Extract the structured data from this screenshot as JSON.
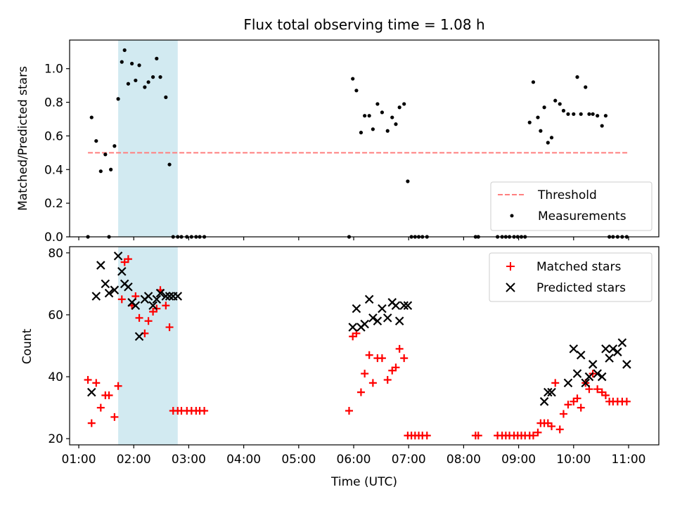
{
  "chart_data": [
    {
      "type": "scatter",
      "title": "Flux total observing time = 1.08 h",
      "ylabel": "Matched/Predicted stars",
      "xlabel": "",
      "xlim": [
        "00:50",
        "11:33"
      ],
      "ylim": [
        0,
        1.17
      ],
      "x_ticks": [
        "01:00",
        "02:00",
        "03:00",
        "04:00",
        "05:00",
        "06:00",
        "07:00",
        "08:00",
        "09:00",
        "10:00",
        "11:00"
      ],
      "y_ticks": [
        "0.0",
        "0.2",
        "0.4",
        "0.6",
        "0.8",
        "1.0"
      ],
      "shaded_span": [
        "01:43",
        "02:48"
      ],
      "shade_color": "#add8e6",
      "legend_position": "lower right",
      "threshold": {
        "name": "Threshold",
        "value": 0.5,
        "x_range": [
          "01:10",
          "11:00"
        ],
        "color": "#ff7f7f"
      },
      "series": [
        {
          "name": "Measurements",
          "color": "#000000",
          "x": [
            "01:10",
            "01:14",
            "01:19",
            "01:24",
            "01:29",
            "01:33",
            "01:35",
            "01:39",
            "01:43",
            "01:47",
            "01:50",
            "01:54",
            "01:58",
            "02:02",
            "02:06",
            "02:12",
            "02:16",
            "02:21",
            "02:25",
            "02:29",
            "02:35",
            "02:39",
            "02:43",
            "02:48",
            "02:52",
            "02:58",
            "03:03",
            "03:08",
            "03:12",
            "03:17",
            "05:55",
            "05:59",
            "06:03",
            "06:08",
            "06:12",
            "06:17",
            "06:21",
            "06:26",
            "06:31",
            "06:37",
            "06:42",
            "06:46",
            "06:50",
            "06:55",
            "06:59",
            "07:03",
            "07:07",
            "07:11",
            "07:15",
            "07:20",
            "08:13",
            "08:16",
            "08:37",
            "08:42",
            "08:46",
            "08:50",
            "08:55",
            "08:59",
            "09:03",
            "09:07",
            "09:12",
            "09:16",
            "09:21",
            "09:24",
            "09:28",
            "09:32",
            "09:36",
            "09:40",
            "09:45",
            "09:49",
            "09:54",
            "10:00",
            "10:04",
            "10:08",
            "10:13",
            "10:17",
            "10:21",
            "10:26",
            "10:31",
            "10:35",
            "10:39",
            "10:43",
            "10:48",
            "10:53",
            "10:58"
          ],
          "y": [
            0.0,
            0.71,
            0.57,
            0.39,
            0.49,
            0.0,
            0.4,
            0.54,
            0.82,
            1.04,
            1.11,
            0.91,
            1.03,
            0.93,
            1.02,
            0.89,
            0.92,
            0.95,
            1.06,
            0.95,
            0.83,
            0.43,
            0.0,
            0.0,
            0.0,
            0.0,
            0.0,
            0.0,
            0.0,
            0.0,
            0.0,
            0.94,
            0.87,
            0.62,
            0.72,
            0.72,
            0.64,
            0.79,
            0.74,
            0.63,
            0.71,
            0.67,
            0.77,
            0.79,
            0.33,
            0.0,
            0.0,
            0.0,
            0.0,
            0.0,
            0.0,
            0.0,
            0.0,
            0.0,
            0.0,
            0.0,
            0.0,
            0.0,
            0.0,
            0.0,
            0.68,
            0.92,
            0.71,
            0.63,
            0.77,
            0.56,
            0.59,
            0.81,
            0.79,
            0.75,
            0.73,
            0.73,
            0.95,
            0.73,
            0.89,
            0.73,
            0.73,
            0.72,
            0.66,
            0.72,
            0.0,
            0.0,
            0.0,
            0.0,
            0.0
          ]
        }
      ]
    },
    {
      "type": "scatter",
      "title": "",
      "xlabel": "Time (UTC)",
      "ylabel": "Count",
      "xlim": [
        "00:50",
        "11:33"
      ],
      "ylim": [
        18,
        82
      ],
      "x_ticks": [
        "01:00",
        "02:00",
        "03:00",
        "04:00",
        "05:00",
        "06:00",
        "07:00",
        "08:00",
        "09:00",
        "10:00",
        "11:00"
      ],
      "y_ticks": [
        "20",
        "40",
        "60",
        "80"
      ],
      "shaded_span": [
        "01:43",
        "02:48"
      ],
      "shade_color": "#add8e6",
      "legend_position": "upper right",
      "series": [
        {
          "name": "Matched stars",
          "color": "#ff0000",
          "marker": "+",
          "x": [
            "01:10",
            "01:14",
            "01:19",
            "01:24",
            "01:29",
            "01:33",
            "01:39",
            "01:43",
            "01:47",
            "01:50",
            "01:54",
            "01:58",
            "02:02",
            "02:06",
            "02:12",
            "02:16",
            "02:21",
            "02:25",
            "02:29",
            "02:35",
            "02:39",
            "02:43",
            "02:48",
            "02:52",
            "02:58",
            "03:03",
            "03:08",
            "03:12",
            "03:17",
            "05:55",
            "05:59",
            "06:03",
            "06:08",
            "06:12",
            "06:17",
            "06:21",
            "06:26",
            "06:31",
            "06:37",
            "06:42",
            "06:46",
            "06:50",
            "06:55",
            "06:59",
            "07:03",
            "07:07",
            "07:11",
            "07:15",
            "07:20",
            "08:13",
            "08:16",
            "08:37",
            "08:42",
            "08:46",
            "08:50",
            "08:55",
            "08:59",
            "09:03",
            "09:07",
            "09:12",
            "09:16",
            "09:21",
            "09:24",
            "09:28",
            "09:32",
            "09:36",
            "09:40",
            "09:45",
            "09:49",
            "09:54",
            "10:00",
            "10:04",
            "10:08",
            "10:13",
            "10:17",
            "10:21",
            "10:26",
            "10:31",
            "10:35",
            "10:39",
            "10:43",
            "10:48",
            "10:53",
            "10:58"
          ],
          "y": [
            39,
            25,
            38,
            30,
            34,
            34,
            27,
            37,
            65,
            77,
            78,
            63,
            66,
            59,
            54,
            58,
            61,
            62,
            68,
            63,
            56,
            29,
            29,
            29,
            29,
            29,
            29,
            29,
            29,
            29,
            53,
            54,
            35,
            41,
            47,
            38,
            46,
            46,
            39,
            42,
            43,
            49,
            46,
            21,
            21,
            21,
            21,
            21,
            21,
            21,
            21,
            21,
            21,
            21,
            21,
            21,
            21,
            21,
            21,
            21,
            21,
            22,
            25,
            25,
            25,
            24,
            38,
            23,
            28,
            31,
            32,
            33,
            30,
            38,
            36,
            41,
            36,
            35,
            34,
            32,
            32,
            32,
            32,
            32
          ]
        },
        {
          "name": "Predicted stars",
          "color": "#000000",
          "marker": "x",
          "x": [
            "01:14",
            "01:19",
            "01:24",
            "01:29",
            "01:33",
            "01:39",
            "01:43",
            "01:47",
            "01:50",
            "01:54",
            "01:58",
            "02:02",
            "02:06",
            "02:12",
            "02:16",
            "02:21",
            "02:25",
            "02:29",
            "02:35",
            "02:39",
            "02:43",
            "02:48",
            "05:59",
            "06:03",
            "06:08",
            "06:12",
            "06:17",
            "06:21",
            "06:26",
            "06:31",
            "06:37",
            "06:42",
            "06:46",
            "06:50",
            "06:55",
            "06:59",
            "09:28",
            "09:32",
            "09:36",
            "09:54",
            "10:00",
            "10:04",
            "10:08",
            "10:13",
            "10:17",
            "10:21",
            "10:26",
            "10:31",
            "10:35",
            "10:39",
            "10:43",
            "10:48",
            "10:53",
            "10:58"
          ],
          "y": [
            35,
            66,
            76,
            70,
            67,
            68,
            79,
            74,
            70,
            69,
            64,
            63,
            53,
            65,
            66,
            63,
            65,
            67,
            66,
            66,
            66,
            66,
            56,
            62,
            56,
            57,
            65,
            59,
            58,
            62,
            59,
            64,
            63,
            58,
            63,
            63,
            32,
            35,
            35,
            38,
            49,
            41,
            47,
            38,
            40,
            44,
            41,
            40,
            49,
            46,
            49,
            48,
            51,
            44
          ]
        }
      ]
    }
  ]
}
